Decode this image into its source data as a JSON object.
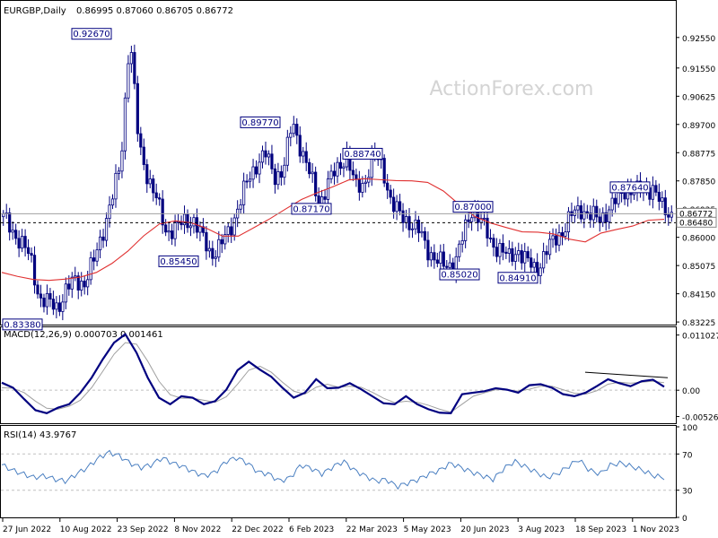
{
  "header": {
    "symbol": "EURGBP,Daily",
    "ohlc": "0.86995 0.87060 0.86705 0.86772"
  },
  "watermark": "ActionForex.com",
  "colors": {
    "candle": "#00007f",
    "ma": "#e03030",
    "macd": "#000080",
    "signal": "#a0a0a0",
    "rsi": "#4a7fc1",
    "grid": "#c0c0c0",
    "text": "#000000"
  },
  "chart_data": [
    {
      "type": "candlestick",
      "title": "EURGBP,Daily",
      "ylim": [
        0.8314,
        0.9372
      ],
      "y_ticks": [
        "0.92550",
        "0.91550",
        "0.90625",
        "0.89700",
        "0.88775",
        "0.87850",
        "0.86925",
        "0.86000",
        "0.85075",
        "0.84150",
        "0.83225"
      ],
      "y_tick_values": [
        0.9255,
        0.9155,
        0.90625,
        0.897,
        0.88775,
        0.8785,
        0.86925,
        0.86,
        0.85075,
        0.8415,
        0.83225
      ],
      "current_price": "0.86772",
      "current_price_value": 0.86772,
      "reference_level": "0.86480",
      "reference_level_value": 0.8648,
      "ma_line": [
        0.8485,
        0.8472,
        0.8462,
        0.8459,
        0.8463,
        0.847,
        0.8485,
        0.8515,
        0.8555,
        0.8605,
        0.8644,
        0.8654,
        0.8648,
        0.8629,
        0.8604,
        0.8604,
        0.8632,
        0.8661,
        0.8693,
        0.8724,
        0.8746,
        0.8766,
        0.8788,
        0.8792,
        0.8789,
        0.8786,
        0.8785,
        0.878,
        0.8752,
        0.8708,
        0.8668,
        0.8647,
        0.8632,
        0.8618,
        0.8617,
        0.8611,
        0.8594,
        0.8585,
        0.8614,
        0.8626,
        0.8637,
        0.8656,
        0.8659
      ],
      "price_path": [
        0.8665,
        0.862,
        0.8585,
        0.853,
        0.84,
        0.8385,
        0.837,
        0.843,
        0.846,
        0.845,
        0.852,
        0.862,
        0.872,
        0.8845,
        0.9267,
        0.89,
        0.88,
        0.872,
        0.862,
        0.863,
        0.865,
        0.866,
        0.86,
        0.8545,
        0.857,
        0.862,
        0.87,
        0.878,
        0.884,
        0.8875,
        0.88,
        0.882,
        0.8977,
        0.889,
        0.88,
        0.871,
        0.878,
        0.8825,
        0.8874,
        0.876,
        0.878,
        0.8874,
        0.883,
        0.871,
        0.867,
        0.865,
        0.862,
        0.856,
        0.8525,
        0.8502,
        0.852,
        0.861,
        0.87,
        0.865,
        0.858,
        0.8565,
        0.853,
        0.856,
        0.852,
        0.8491,
        0.855,
        0.859,
        0.8625,
        0.8675,
        0.8695,
        0.867,
        0.866,
        0.869,
        0.8725,
        0.8764,
        0.8745,
        0.8765,
        0.8757,
        0.8695,
        0.86772
      ],
      "annotations": [
        {
          "text": "0.92670",
          "price": 0.9267
        },
        {
          "text": "0.89770",
          "price": 0.8977
        },
        {
          "text": "0.88740",
          "price": 0.8874
        },
        {
          "text": "0.87170",
          "price": 0.8717
        },
        {
          "text": "0.87000",
          "price": 0.87
        },
        {
          "text": "0.87640",
          "price": 0.8764
        },
        {
          "text": "0.85450",
          "price": 0.8545
        },
        {
          "text": "0.85020",
          "price": 0.8502
        },
        {
          "text": "0.84910",
          "price": 0.8491
        },
        {
          "text": "0.83380",
          "price": 0.8338
        }
      ]
    },
    {
      "type": "line",
      "title": "MACD(12,26,9) 0.000703 0.001461",
      "ylim": [
        -0.0066,
        0.0124
      ],
      "y_ticks": [
        "0.011027",
        "0.00",
        "-0.005267"
      ],
      "y_tick_values": [
        0.011027,
        0,
        -0.005267
      ],
      "series": [
        {
          "name": "MACD",
          "values": [
            0.0015,
            0.0005,
            -0.0018,
            -0.004,
            -0.0046,
            -0.0035,
            -0.0028,
            -0.0005,
            0.0025,
            0.0062,
            0.0095,
            0.0112,
            0.0075,
            0.0025,
            -0.0015,
            -0.0028,
            -0.0012,
            -0.0015,
            -0.0028,
            -0.0022,
            0.0001,
            0.004,
            0.0057,
            0.0041,
            0.0027,
            0.0005,
            -0.0015,
            -0.0005,
            0.0022,
            0.0004,
            0.0005,
            0.0014,
            0.0002,
            -0.0012,
            -0.0026,
            -0.0028,
            -0.0012,
            -0.0028,
            -0.0038,
            -0.0045,
            -0.0046,
            -0.0008,
            -0.0005,
            -0.0002,
            0.0004,
            0.0001,
            -0.0005,
            0.001,
            0.0012,
            0.0005,
            -0.0008,
            -0.0012,
            -0.0005,
            0.0008,
            0.0022,
            0.0014,
            0.0008,
            0.0018,
            0.0021,
            0.0007
          ]
        },
        {
          "name": "Signal",
          "values": [
            0.0005,
            0.0004,
            -0.0005,
            -0.0022,
            -0.0036,
            -0.0038,
            -0.0032,
            -0.002,
            0.0005,
            0.0038,
            0.0072,
            0.0095,
            0.0092,
            0.0058,
            0.0018,
            -0.0009,
            -0.0016,
            -0.0016,
            -0.002,
            -0.0024,
            -0.0013,
            0.0012,
            0.004,
            0.0048,
            0.0036,
            0.0016,
            -0.0002,
            -0.0008,
            0.0006,
            0.0012,
            0.0006,
            0.0008,
            0.0006,
            -0.0004,
            -0.0016,
            -0.0025,
            -0.0022,
            -0.0024,
            -0.003,
            -0.0038,
            -0.0044,
            -0.0028,
            -0.0012,
            -0.0005,
            0.0001,
            0.0001,
            -0.0002,
            0.0002,
            0.0008,
            0.0008,
            0.0001,
            -0.0006,
            -0.0008,
            -0.0001,
            0.0012,
            0.0016,
            0.0014,
            0.0016,
            0.0018,
            0.0015
          ]
        },
        {
          "name": "Trendline",
          "values": [
            0.0036,
            0.0025
          ]
        }
      ]
    },
    {
      "type": "line",
      "title": "RSI(14) 43.9767",
      "ylim": [
        0,
        100
      ],
      "y_ticks": [
        "100",
        "70",
        "30",
        "0"
      ],
      "y_tick_values": [
        100,
        70,
        30,
        0
      ],
      "series": [
        {
          "name": "RSI",
          "values": [
            58,
            52,
            48,
            44,
            46,
            42,
            40,
            48,
            55,
            65,
            72,
            68,
            60,
            55,
            58,
            66,
            60,
            56,
            50,
            46,
            50,
            62,
            66,
            60,
            50,
            48,
            40,
            44,
            58,
            54,
            48,
            56,
            62,
            52,
            46,
            40,
            42,
            34,
            38,
            42,
            48,
            52,
            60,
            55,
            50,
            46,
            42,
            54,
            62,
            56,
            50,
            44,
            48,
            56,
            64,
            52,
            48,
            58,
            60,
            56,
            52,
            46,
            44
          ]
        }
      ]
    }
  ],
  "x_axis": {
    "labels": [
      "27 Jun 2022",
      "10 Aug 2022",
      "23 Sep 2022",
      "8 Nov 2022",
      "22 Dec 2022",
      "6 Feb 2023",
      "22 Mar 2023",
      "5 May 2023",
      "20 Jun 2023",
      "3 Aug 2023",
      "18 Sep 2023",
      "1 Nov 2023"
    ]
  }
}
